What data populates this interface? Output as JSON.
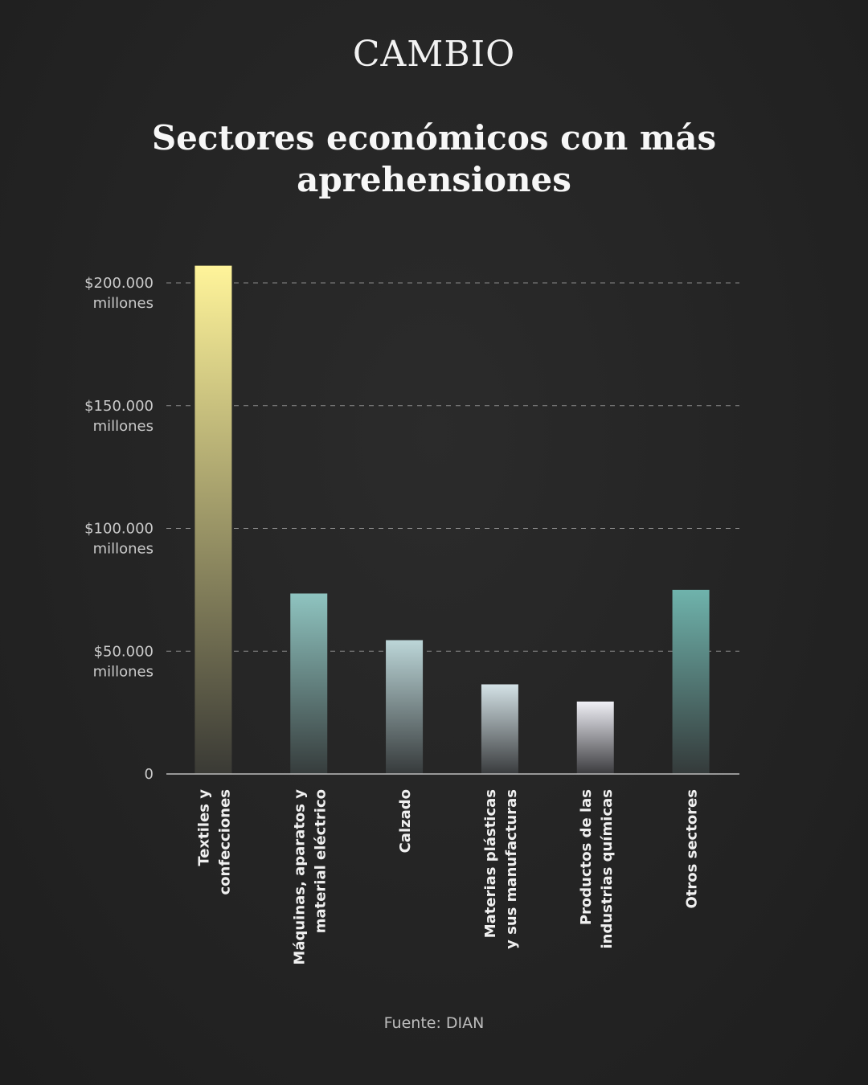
{
  "brand": "CAMBIO",
  "source": "Fuente: DIAN",
  "chart_data": {
    "type": "bar",
    "title": "Sectores económicos con más aprehensiones",
    "categories": [
      [
        "Textiles y",
        "confecciones"
      ],
      [
        "Máquinas, aparatos y",
        "material eléctrico"
      ],
      [
        "Calzado"
      ],
      [
        "Materias plásticas",
        "y sus manufacturas"
      ],
      [
        "Productos de las",
        "industrias químicas"
      ],
      [
        "Otros sectores"
      ]
    ],
    "values": [
      207000,
      73500,
      54500,
      36500,
      29500,
      75000
    ],
    "ylim": [
      0,
      200000
    ],
    "yticks": [
      {
        "value": 0,
        "lines": [
          "0"
        ]
      },
      {
        "value": 50000,
        "lines": [
          "$50.000",
          "millones"
        ]
      },
      {
        "value": 100000,
        "lines": [
          "$100.000",
          "millones"
        ]
      },
      {
        "value": 150000,
        "lines": [
          "$150.000",
          "millones"
        ]
      },
      {
        "value": 200000,
        "lines": [
          "$200.000",
          "millones"
        ]
      }
    ],
    "grid": true,
    "bar_colors": [
      [
        "#fff49a",
        "#3a3a35"
      ],
      [
        "#8fc4c0",
        "#363c3c"
      ],
      [
        "#bcd6d8",
        "#363a3b"
      ],
      [
        "#d4e2e6",
        "#393b3d"
      ],
      [
        "#f0f0f6",
        "#3b3b3e"
      ],
      [
        "#6fb3ac",
        "#343a3a"
      ]
    ]
  }
}
